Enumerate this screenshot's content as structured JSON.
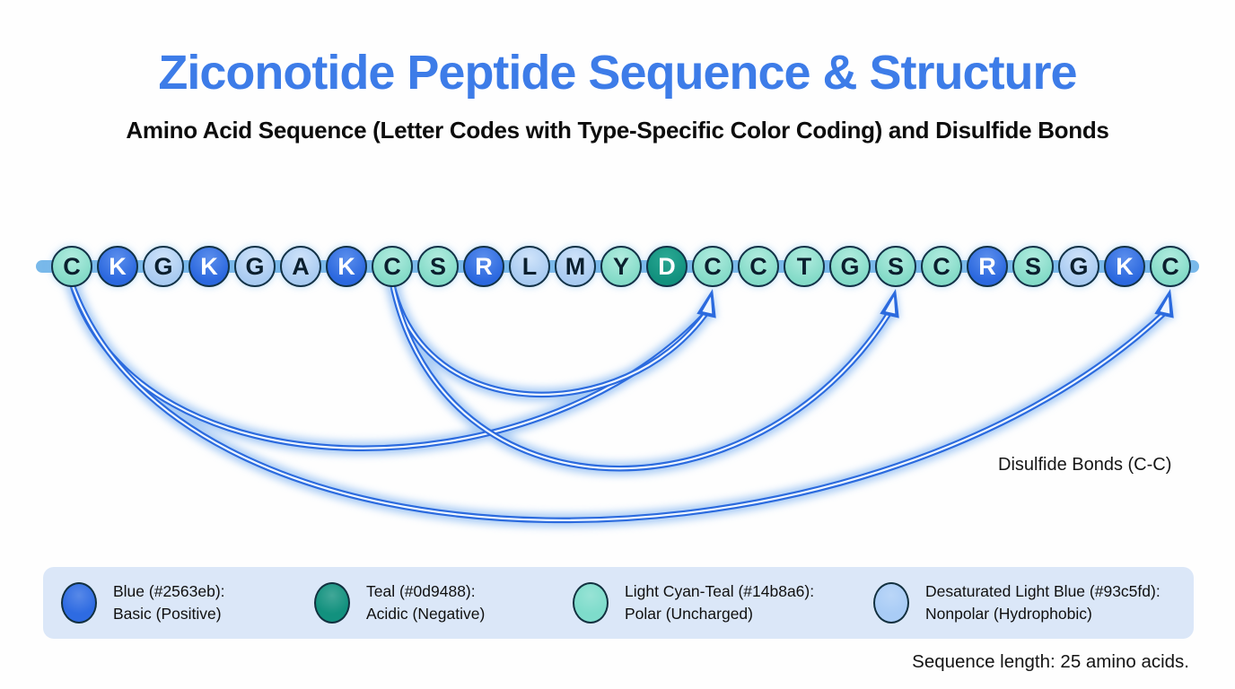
{
  "title": "Ziconotide Peptide Sequence & Structure",
  "subtitle": "Amino Acid Sequence (Letter Codes with Type-Specific Color Coding) and Disulfide Bonds",
  "sequence": {
    "string": "CKGKGAKCSRLMYDCCTGSCRSGKC",
    "length": 25,
    "residues": [
      {
        "letter": "C",
        "type": "polar"
      },
      {
        "letter": "K",
        "type": "basic"
      },
      {
        "letter": "G",
        "type": "nonpolar"
      },
      {
        "letter": "K",
        "type": "basic"
      },
      {
        "letter": "G",
        "type": "nonpolar"
      },
      {
        "letter": "A",
        "type": "nonpolar"
      },
      {
        "letter": "K",
        "type": "basic"
      },
      {
        "letter": "C",
        "type": "polar"
      },
      {
        "letter": "S",
        "type": "polar"
      },
      {
        "letter": "R",
        "type": "basic"
      },
      {
        "letter": "L",
        "type": "nonpolar"
      },
      {
        "letter": "M",
        "type": "nonpolar"
      },
      {
        "letter": "Y",
        "type": "polar"
      },
      {
        "letter": "D",
        "type": "acidic"
      },
      {
        "letter": "C",
        "type": "polar"
      },
      {
        "letter": "C",
        "type": "polar"
      },
      {
        "letter": "T",
        "type": "polar"
      },
      {
        "letter": "G",
        "type": "polar"
      },
      {
        "letter": "S",
        "type": "polar"
      },
      {
        "letter": "C",
        "type": "polar"
      },
      {
        "letter": "R",
        "type": "basic"
      },
      {
        "letter": "S",
        "type": "polar"
      },
      {
        "letter": "G",
        "type": "nonpolar"
      },
      {
        "letter": "K",
        "type": "basic"
      },
      {
        "letter": "C",
        "type": "polar"
      }
    ]
  },
  "bonds": {
    "label": "Disulfide Bonds (C-C)",
    "arcs": [
      {
        "from": 1,
        "to": 15
      },
      {
        "from": 8,
        "to": 15
      },
      {
        "from": 8,
        "to": 19
      },
      {
        "from": 1,
        "to": 25
      }
    ]
  },
  "legend": {
    "items": [
      {
        "line1": "Blue (#2563eb):",
        "line2": "Basic (Positive)",
        "hex": "#2563eb",
        "swatch_hex": "#2e6be2",
        "type": "basic"
      },
      {
        "line1": "Teal (#0d9488):",
        "line2": "Acidic (Negative)",
        "hex": "#0d9488",
        "swatch_hex": "#12917e",
        "type": "acidic"
      },
      {
        "line1": "Light Cyan-Teal (#14b8a6):",
        "line2": "Polar (Uncharged)",
        "hex": "#14b8a6",
        "swatch_hex": "#7edccb",
        "type": "polar"
      },
      {
        "line1": "Desaturated Light Blue (#93c5fd):",
        "line2": "Nonpolar (Hydrophobic)",
        "hex": "#93c5fd",
        "swatch_hex": "#a9ccf6",
        "type": "nonpolar"
      }
    ]
  },
  "footer": {
    "sequence_length": "Sequence length: 25 amino acids."
  },
  "colors": {
    "title": "#3d7ce8",
    "backbone": "#79b9ea",
    "bond": "#2b6ade",
    "bond_core": "#eef6ff",
    "bond_glow": "#a9ccf5",
    "legend_band": "#dbe7f8"
  }
}
